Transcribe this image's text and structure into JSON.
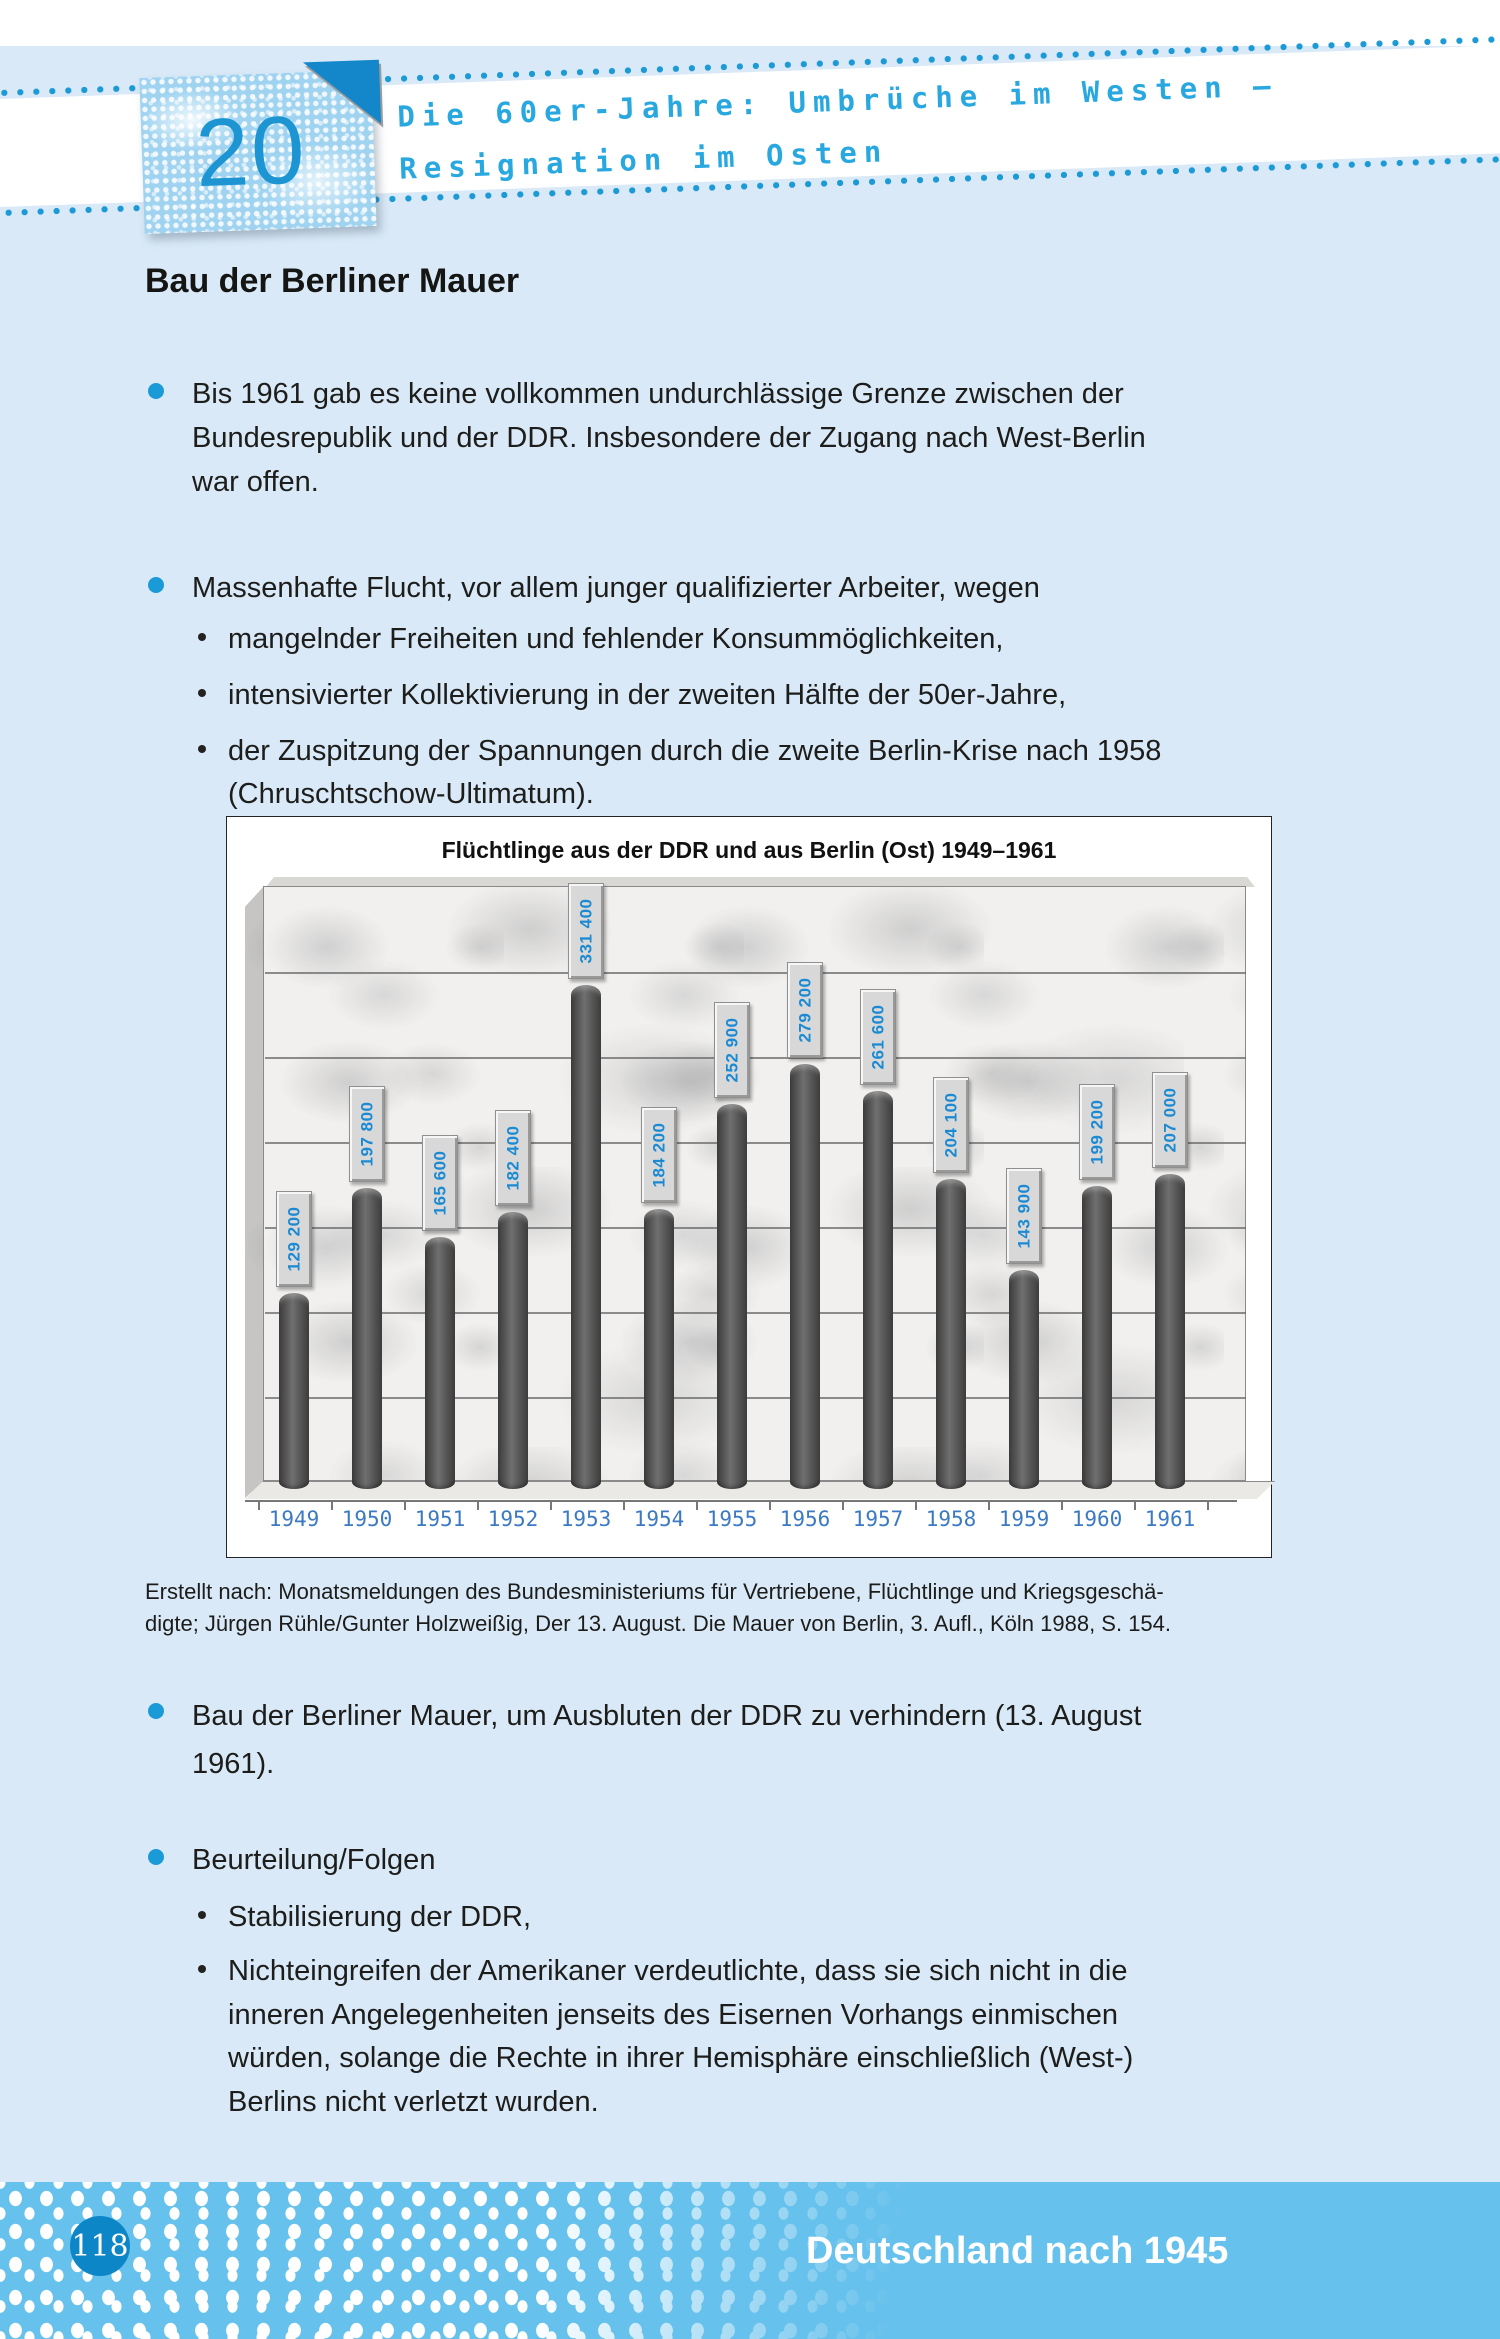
{
  "page": {
    "header": {
      "chapter_number": "20",
      "title_line1": "Die 60er-Jahre: Umbrüche im Westen –",
      "title_line2": "Resignation im Osten"
    },
    "section_title": "Bau der Berliner Mauer",
    "bullets": [
      {
        "lines": [
          "Bis 1961 gab es keine vollkommen undurchlässige Grenze zwischen der",
          "Bundesrepublik und der DDR. Insbesondere der Zugang nach West-Berlin",
          "war offen."
        ]
      },
      {
        "lines": [
          "Massenhafte Flucht, vor allem junger qualifizierter Arbeiter, wegen"
        ],
        "subs": [
          {
            "lines": [
              "mangelnder Freiheiten und fehlender Konsummöglichkeiten,"
            ]
          },
          {
            "lines": [
              "intensivierter Kollektivierung in der zweiten Hälfte der 50er-Jahre,"
            ]
          },
          {
            "lines": [
              "der Zuspitzung der Spannungen durch die zweite Berlin-Krise nach 1958",
              "(Chruschtschow-Ultimatum)."
            ]
          }
        ]
      },
      {
        "lines": [
          "Bau der Berliner Mauer, um Ausbluten der DDR zu verhindern (13. August",
          "1961)."
        ]
      },
      {
        "lines": [
          "Beurteilung/Folgen"
        ],
        "subs": [
          {
            "lines": [
              "Stabilisierung der DDR,"
            ]
          },
          {
            "lines": [
              "Nichteingreifen der Amerikaner verdeutlichte, dass sie sich nicht in die",
              "inneren Angelegenheiten jenseits des Eisernen Vorhangs einmischen",
              "würden, solange die Rechte in ihrer Hemisphäre einschließlich (West-)",
              "Berlins nicht verletzt wurden."
            ]
          }
        ]
      }
    ],
    "source": [
      "Erstellt nach: Monatsmeldungen des Bundesministeriums für Vertriebene, Flüchtlinge und Kriegsgeschä-",
      "digte; Jürgen Rühle/Gunter Holzweißig, Der 13. August. Die Mauer von Berlin, 3. Aufl., Köln 1988, S. 154."
    ],
    "footer": {
      "page_number": "118",
      "title": "Deutschland nach 1945"
    },
    "colors": {
      "page_background": "#d9e9f7",
      "header_title_cyan": "#29a8e0",
      "accent_blue": "#1a9bd7",
      "footer_blue": "#66c1ec",
      "page_circle_blue": "#0d86c8",
      "bar_gray": "#4d4d4d",
      "value_label_blue": "#1b8ad2",
      "year_label_blue": "#3b79c2"
    }
  },
  "chart_data": {
    "type": "bar",
    "title": "Flüchtlinge aus der DDR und aus Berlin (Ost) 1949–1961",
    "categories": [
      "1949",
      "1950",
      "1951",
      "1952",
      "1953",
      "1954",
      "1955",
      "1956",
      "1957",
      "1958",
      "1959",
      "1960",
      "1961"
    ],
    "values": [
      129200,
      197800,
      165600,
      182400,
      331400,
      184200,
      252900,
      279200,
      261600,
      204100,
      143900,
      199200,
      207000
    ],
    "value_labels": [
      "129 200",
      "197 800",
      "165 600",
      "182 400",
      "331 400",
      "184 200",
      "252 900",
      "279 200",
      "261 600",
      "204 100",
      "143 900",
      "199 200",
      "207 000"
    ],
    "xlabel": "",
    "ylabel": "",
    "ylim": [
      0,
      350000
    ],
    "gridline_interval": 50000,
    "grid": "horizontal",
    "legend": "none",
    "bar_color": "#4d4d4d",
    "background": "marble-wall"
  }
}
